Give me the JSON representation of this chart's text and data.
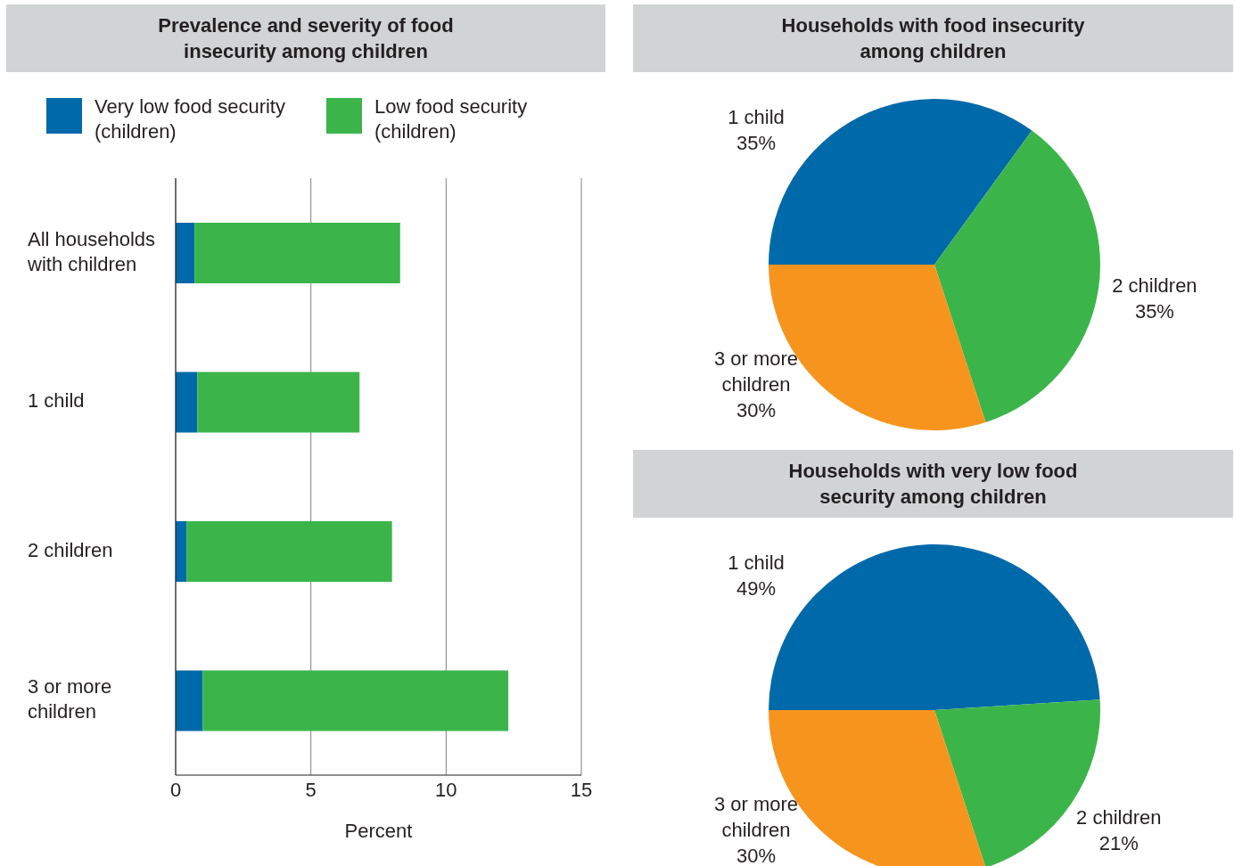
{
  "chart_data": [
    {
      "type": "bar",
      "title": "Prevalence and severity of food insecurity among children",
      "orientation": "horizontal",
      "stacked": true,
      "categories": [
        "All households with children",
        "1 child",
        "2 children",
        "3 or more children"
      ],
      "series": [
        {
          "name": "Very low food security (children)",
          "color": "#0069aa",
          "values": [
            0.7,
            0.8,
            0.4,
            1.0
          ]
        },
        {
          "name": "Low food security (children)",
          "color": "#3bb54a",
          "values": [
            7.6,
            6.0,
            7.6,
            11.3
          ]
        }
      ],
      "xlim": [
        0,
        15
      ],
      "xticks": [
        0,
        5,
        10,
        15
      ],
      "xlabel": "Percent",
      "grid": "x",
      "legend": "top"
    },
    {
      "type": "pie",
      "title": "Households with food insecurity among children",
      "categories": [
        "1 child",
        "2 children",
        "3 or more children"
      ],
      "values": [
        35,
        35,
        30
      ],
      "value_labels": [
        "35%",
        "35%",
        "30%"
      ],
      "colors": [
        "#0069aa",
        "#3bb54a",
        "#f7941d"
      ]
    },
    {
      "type": "pie",
      "title": "Households with very low food security among children",
      "categories": [
        "1 child",
        "2 children",
        "3 or more children"
      ],
      "values": [
        49,
        21,
        30
      ],
      "value_labels": [
        "49%",
        "21%",
        "30%"
      ],
      "colors": [
        "#0069aa",
        "#3bb54a",
        "#f7941d"
      ]
    }
  ]
}
